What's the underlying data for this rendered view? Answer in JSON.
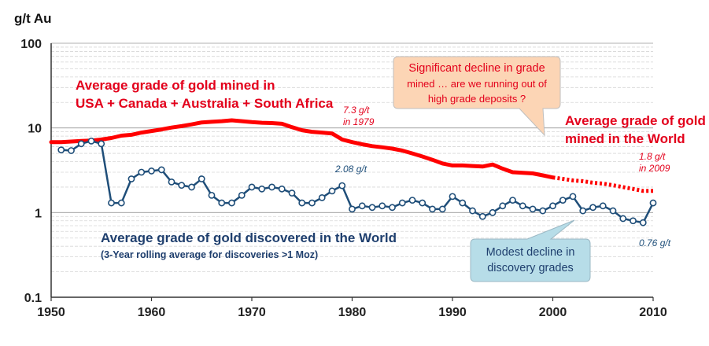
{
  "chart_data": {
    "type": "line",
    "y_unit_label": "g/t Au",
    "yscale": "log",
    "ylim": [
      0.1,
      100
    ],
    "xlim": [
      1950,
      2010
    ],
    "x_ticks": [
      "1950",
      "1960",
      "1970",
      "1980",
      "1990",
      "2000",
      "2010"
    ],
    "y_ticks": [
      "0.1",
      "1",
      "10",
      "100"
    ],
    "grid": "horizontal dashed minor log gridlines",
    "series": [
      {
        "name": "Average grade of gold mined in USA + Canada + Australia + South Africa",
        "color": "#ff0000",
        "style": "solid thick line",
        "x": [
          1950,
          1951,
          1952,
          1953,
          1954,
          1955,
          1956,
          1957,
          1958,
          1959,
          1960,
          1961,
          1962,
          1963,
          1964,
          1965,
          1966,
          1967,
          1968,
          1969,
          1970,
          1971,
          1972,
          1973,
          1974,
          1975,
          1976,
          1977,
          1978,
          1979,
          1980,
          1981,
          1982,
          1983,
          1984,
          1985,
          1986,
          1987,
          1988,
          1989,
          1990,
          1991,
          1992,
          1993,
          1994,
          1995,
          1996,
          1997,
          1998,
          1999,
          2000
        ],
        "y": [
          6.8,
          6.8,
          6.9,
          7.0,
          7.1,
          7.3,
          7.6,
          8.1,
          8.3,
          8.8,
          9.2,
          9.6,
          10.1,
          10.5,
          11.0,
          11.6,
          11.8,
          12.0,
          12.3,
          12.0,
          11.7,
          11.5,
          11.4,
          11.2,
          10.2,
          9.4,
          9.0,
          8.8,
          8.6,
          7.3,
          6.8,
          6.4,
          6.1,
          5.9,
          5.7,
          5.4,
          5.0,
          4.6,
          4.2,
          3.8,
          3.6,
          3.6,
          3.55,
          3.5,
          3.7,
          3.3,
          3.0,
          2.95,
          2.9,
          2.75,
          2.6
        ]
      },
      {
        "name": "Average grade of gold mined in the World",
        "color": "#ff0000",
        "style": "dotted thick line",
        "x": [
          2000,
          2001,
          2002,
          2003,
          2004,
          2005,
          2006,
          2007,
          2008,
          2009,
          2010
        ],
        "y": [
          2.6,
          2.5,
          2.4,
          2.35,
          2.25,
          2.2,
          2.1,
          2.0,
          1.9,
          1.8,
          1.8
        ]
      },
      {
        "name": "Average grade of gold discovered in the World",
        "subtitle": "(3-Year rolling average for discoveries >1 Moz)",
        "color": "#1f4e79",
        "style": "line with hollow circle markers",
        "x": [
          1951,
          1952,
          1953,
          1954,
          1955,
          1956,
          1957,
          1958,
          1959,
          1960,
          1961,
          1962,
          1963,
          1964,
          1965,
          1966,
          1967,
          1968,
          1969,
          1970,
          1971,
          1972,
          1973,
          1974,
          1975,
          1976,
          1977,
          1978,
          1979,
          1980,
          1981,
          1982,
          1983,
          1984,
          1985,
          1986,
          1987,
          1988,
          1989,
          1990,
          1991,
          1992,
          1993,
          1994,
          1995,
          1996,
          1997,
          1998,
          1999,
          2000,
          2001,
          2002,
          2003,
          2004,
          2005,
          2006,
          2007,
          2008,
          2009,
          2010
        ],
        "y": [
          5.5,
          5.4,
          6.5,
          7.0,
          6.5,
          1.3,
          1.3,
          2.5,
          3.0,
          3.1,
          3.2,
          2.3,
          2.1,
          2.0,
          2.5,
          1.6,
          1.3,
          1.3,
          1.6,
          2.0,
          1.9,
          2.0,
          1.9,
          1.7,
          1.3,
          1.3,
          1.5,
          1.8,
          2.08,
          1.1,
          1.2,
          1.15,
          1.2,
          1.15,
          1.3,
          1.4,
          1.3,
          1.1,
          1.1,
          1.55,
          1.3,
          1.05,
          0.9,
          1.0,
          1.2,
          1.4,
          1.2,
          1.1,
          1.05,
          1.2,
          1.4,
          1.55,
          1.05,
          1.15,
          1.2,
          1.05,
          0.85,
          0.8,
          0.76,
          1.3
        ]
      }
    ],
    "annotations": {
      "mined_label_lines": [
        "Average grade of gold mined in",
        "USA + Canada + Australia + South Africa"
      ],
      "peak_value": "7.3 g/t",
      "peak_year": "in 1979",
      "world_label_lines": [
        "Average grade of gold",
        "mined in the World"
      ],
      "end_value": "1.8 g/t",
      "end_year": "in 2009",
      "discovered_value": "2.08 g/t",
      "discovered_label": "Average grade of gold discovered in the World",
      "discovered_sub": "(3-Year rolling average for discoveries >1 Moz)",
      "discovered_end": "0.76 g/t",
      "callout_orange_lines": [
        "Significant decline in grade",
        "mined … are we running out of",
        "high grade deposits ?"
      ],
      "callout_blue_lines": [
        "Modest decline in",
        "discovery grades"
      ]
    },
    "colors": {
      "mined": "#ff0000",
      "discovered": "#1f4e79",
      "callout_orange_fill": "#fcd5b5",
      "callout_orange_text": "#e3001b",
      "callout_blue_fill": "#b7dde8",
      "callout_blue_text": "#1f3f6e"
    }
  }
}
